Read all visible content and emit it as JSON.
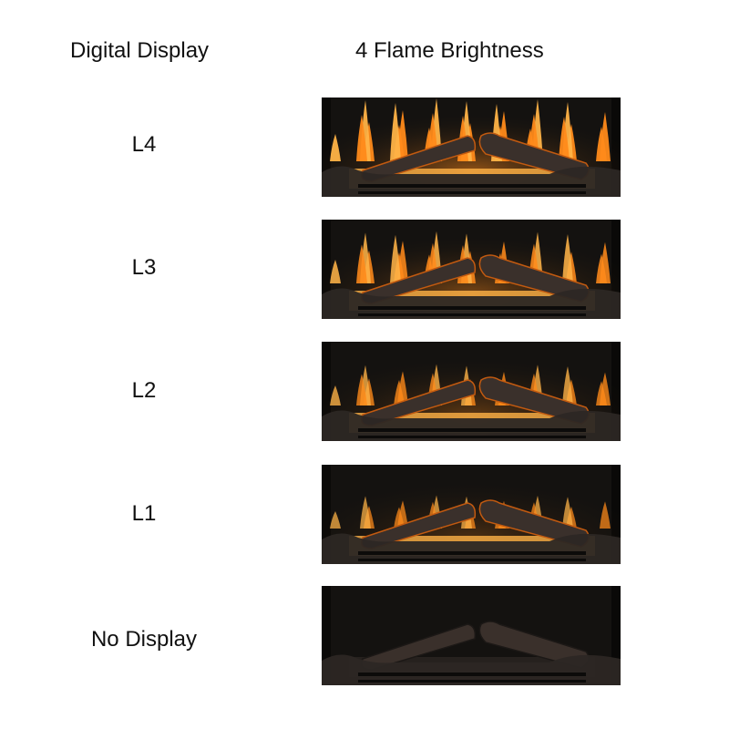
{
  "headers": {
    "left": "Digital Display",
    "right": "4 Flame Brightness"
  },
  "rows": [
    {
      "label": "L4",
      "brightness": 1.0
    },
    {
      "label": "L3",
      "brightness": 0.8
    },
    {
      "label": "L2",
      "brightness": 0.6
    },
    {
      "label": "L1",
      "brightness": 0.45
    },
    {
      "label": "No Display",
      "brightness": 0.0
    }
  ],
  "colors": {
    "flame": "#ff8a1a",
    "ember": "#ffb347",
    "background": "#141210"
  }
}
